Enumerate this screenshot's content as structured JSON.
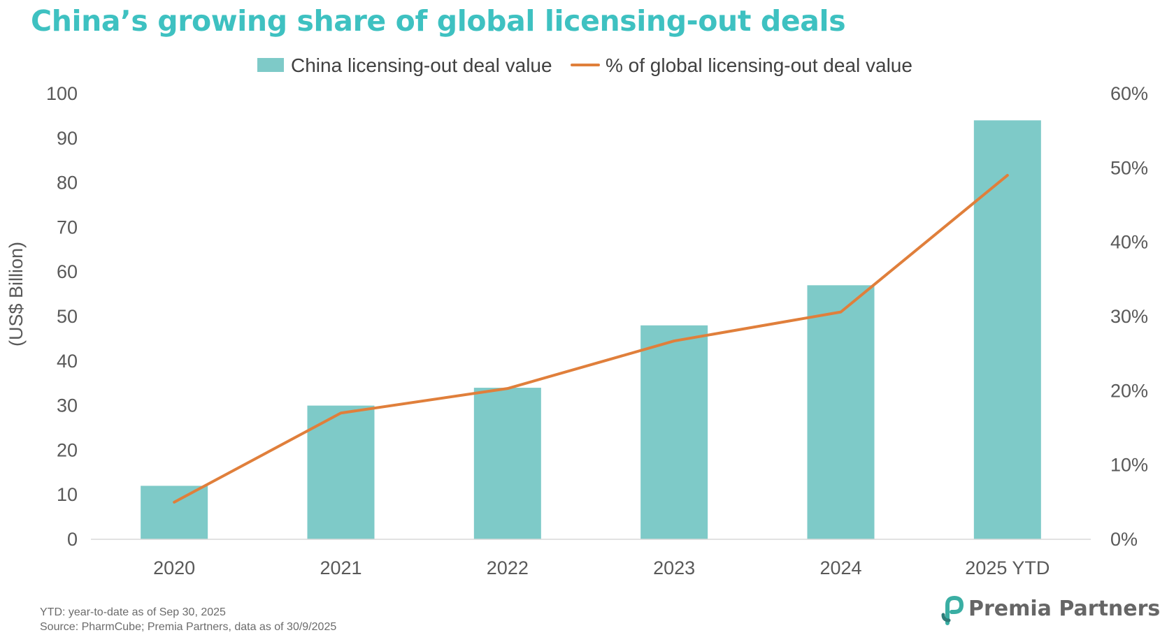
{
  "chart_data": {
    "type": "bar",
    "title": "China’s growing share of global licensing-out deals",
    "categories": [
      "2020",
      "2021",
      "2022",
      "2023",
      "2024",
      "2025 YTD"
    ],
    "series": [
      {
        "name": "China licensing-out deal value",
        "type": "bar",
        "axis": "left",
        "values": [
          12,
          30,
          34,
          48,
          57,
          94
        ],
        "color": "#7ecac8"
      },
      {
        "name": "% of global licensing-out deal value",
        "type": "line",
        "axis": "right",
        "values": [
          5,
          17,
          20.3,
          26.7,
          30.6,
          49
        ],
        "color": "#e07f3b"
      }
    ],
    "ylabel": "(US$ Billion)",
    "ylim": [
      0,
      100
    ],
    "y_ticks": [
      "0",
      "10",
      "20",
      "30",
      "40",
      "50",
      "60",
      "70",
      "80",
      "90",
      "100"
    ],
    "y2lim": [
      0,
      60
    ],
    "y2_ticks": [
      "0%",
      "10%",
      "20%",
      "30%",
      "40%",
      "50%",
      "60%"
    ],
    "grid": false,
    "legend_position": "top-center"
  },
  "footnotes": {
    "ytd": "YTD: year-to-date as of Sep 30, 2025",
    "source": "Source: PharmCube; Premia Partners, data as of 30/9/2025"
  },
  "logo": {
    "text": "Premia Partners",
    "icon": "premia-p-logo-icon",
    "colors": [
      "#3aaea3",
      "#2e7c78"
    ]
  },
  "colors": {
    "title": "#3ec1c1",
    "axis_text": "#595959",
    "baseline": "#d9d9d9"
  }
}
